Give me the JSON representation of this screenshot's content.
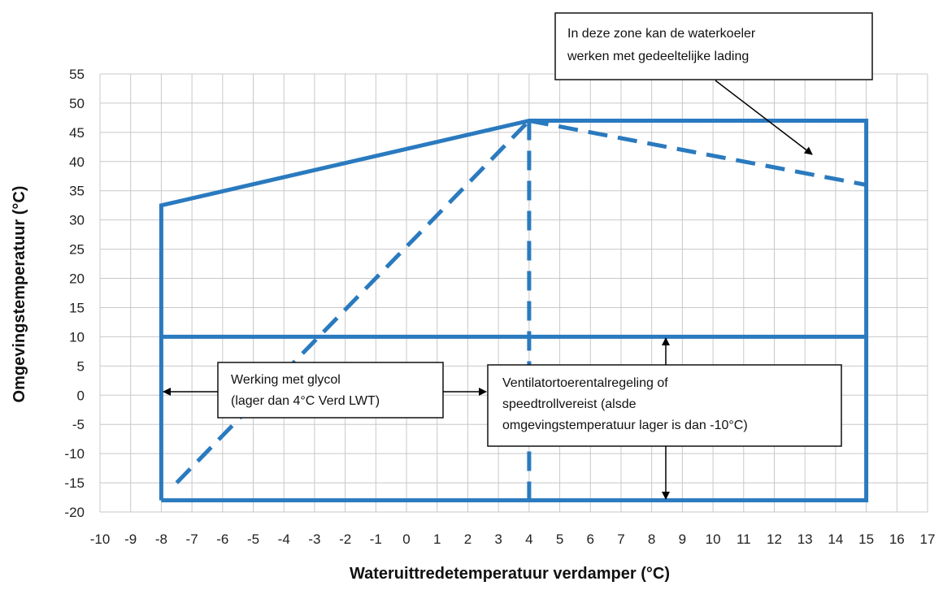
{
  "chart_data": {
    "type": "line",
    "xlabel": "Wateruittredetemperatuur verdamper (°C)",
    "ylabel": "Omgevingstemperatuur (°C)",
    "xlim": [
      -10,
      17
    ],
    "ylim": [
      -20,
      55
    ],
    "x_ticks": [
      "-10",
      "-9",
      "-8",
      "-7",
      "-6",
      "-5",
      "-4",
      "-3",
      "-2",
      "-1",
      "0",
      "1",
      "2",
      "3",
      "4",
      "5",
      "6",
      "7",
      "8",
      "9",
      "10",
      "11",
      "12",
      "13",
      "14",
      "15",
      "16",
      "17"
    ],
    "y_ticks": [
      "55",
      "50",
      "45",
      "40",
      "35",
      "30",
      "25",
      "20",
      "15",
      "10",
      "5",
      "0",
      "-5",
      "-10",
      "-15",
      "-20"
    ],
    "grid": true,
    "series": [
      {
        "style": "solid",
        "color": "#2a7abf",
        "points": [
          [
            -8,
            -18
          ],
          [
            -8,
            32.5
          ],
          [
            4,
            47
          ],
          [
            15,
            47
          ],
          [
            15,
            -18
          ],
          [
            -8,
            -18
          ]
        ]
      },
      {
        "style": "solid",
        "color": "#2a7abf",
        "points": [
          [
            -8,
            10
          ],
          [
            15,
            10
          ]
        ]
      },
      {
        "style": "dashed",
        "color": "#2a7abf",
        "points": [
          [
            -7.5,
            -15
          ],
          [
            4,
            47
          ]
        ]
      },
      {
        "style": "dashed",
        "color": "#2a7abf",
        "points": [
          [
            4,
            47
          ],
          [
            4,
            -18
          ]
        ]
      },
      {
        "style": "dashed",
        "color": "#2a7abf",
        "points": [
          [
            4,
            47
          ],
          [
            15,
            36
          ]
        ]
      }
    ],
    "annotations": [
      {
        "id": "partial-load",
        "lines": [
          "In deze zone kan de waterkoeler",
          "werken met gedeeltelijke lading"
        ]
      },
      {
        "id": "glycol",
        "lines": [
          "Werking met glycol",
          "(lager dan 4°C Verd LWT)"
        ]
      },
      {
        "id": "fan-control",
        "lines": [
          "Ventilatortoerentalregeling  of",
          "speedtrollvereist  (alsde",
          "omgevingstemperatuur lager is dan -10°C)"
        ]
      }
    ]
  }
}
